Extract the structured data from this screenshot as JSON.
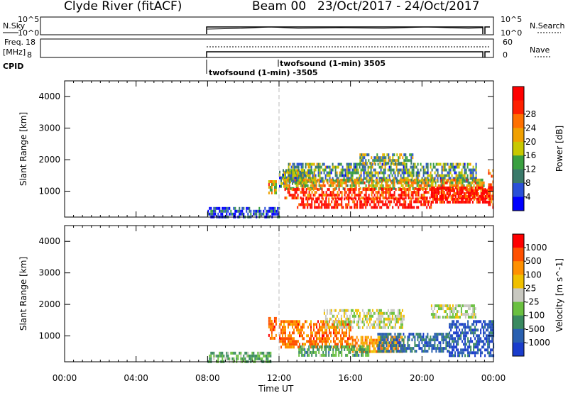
{
  "header": {
    "station": "Clyde River (fitACF)",
    "beam": "Beam 00",
    "dates": "23/Oct/2017 - 24/Oct/2017"
  },
  "params": {
    "nsky_label": "N.Sky",
    "nsky_ticks": [
      "10^5",
      "10^0"
    ],
    "nsky_right_ticks": [
      "10^5",
      "10^0"
    ],
    "nsearch_label": "N.Search",
    "freq_label": "Freq.",
    "freq_unit": "[MHz]",
    "freq_ticks": [
      "18",
      "8"
    ],
    "nave_ticks": [
      "60",
      "0"
    ],
    "nave_label": "Nave",
    "cpid_label": "CPID",
    "cpid_annotations": [
      {
        "text": "twofsound (1-min) 3505",
        "time_h": 12.05
      },
      {
        "text": "twofsound (1-min) -3505",
        "time_h": 8.1
      }
    ]
  },
  "x_axis": {
    "ticks": [
      "00:00",
      "04:00",
      "08:00",
      "12:00",
      "16:00",
      "20:00",
      "00:00"
    ],
    "tick_hours": [
      0,
      4,
      8,
      12,
      16,
      20,
      24
    ],
    "label": "Time UT"
  },
  "chart_data": [
    {
      "type": "heatmap",
      "name": "power",
      "ylabel": "Slant Range [km]",
      "y_ticks": [
        1000,
        2000,
        3000,
        4000
      ],
      "ylim": [
        180,
        4500
      ],
      "xlim_hours": [
        0,
        24
      ],
      "colorbar": {
        "label": "Power [dB]",
        "ticks": [
          "4",
          "8",
          "12",
          "16",
          "20",
          "24",
          "28"
        ],
        "colors": [
          "#0000ff",
          "#2a50d8",
          "#3a7a6a",
          "#3aa040",
          "#c8c800",
          "#f0a000",
          "#ff7000",
          "#ff2000",
          "#ff0000"
        ]
      },
      "marker_line_hours": 12,
      "regions": [
        {
          "t0": 11.4,
          "t1": 11.8,
          "r0": 900,
          "r1": 1350,
          "v": 0.55
        },
        {
          "t0": 12.0,
          "t1": 13.5,
          "r0": 1150,
          "r1": 1650,
          "v": 0.3
        },
        {
          "t0": 12.2,
          "t1": 14.0,
          "r0": 1300,
          "r1": 1700,
          "v": 0.45
        },
        {
          "t0": 12.5,
          "t1": 23.0,
          "r0": 1350,
          "r1": 1900,
          "v": 0.35
        },
        {
          "t0": 12.3,
          "t1": 23.5,
          "r0": 1050,
          "r1": 1400,
          "v": 0.55
        },
        {
          "t0": 12.3,
          "t1": 23.8,
          "r0": 750,
          "r1": 1100,
          "v": 0.85
        },
        {
          "t0": 13.0,
          "t1": 20.5,
          "r0": 450,
          "r1": 800,
          "v": 0.95
        },
        {
          "t0": 20.5,
          "t1": 23.8,
          "r0": 650,
          "r1": 1150,
          "v": 0.95
        },
        {
          "t0": 8.0,
          "t1": 12.0,
          "r0": 180,
          "r1": 500,
          "v": 0.15
        },
        {
          "t0": 16.5,
          "t1": 19.5,
          "r0": 1900,
          "r1": 2200,
          "v": 0.4
        },
        {
          "t0": 23.7,
          "t1": 24.0,
          "r0": 500,
          "r1": 1700,
          "v": 0.85
        }
      ]
    },
    {
      "type": "heatmap",
      "name": "velocity",
      "ylabel": "Slant Range [km]",
      "y_ticks": [
        1000,
        2000,
        3000,
        4000
      ],
      "ylim": [
        180,
        4500
      ],
      "xlim_hours": [
        0,
        24
      ],
      "colorbar": {
        "label": "Velocity [m s^-1]",
        "ticks": [
          "1000",
          "500",
          "100",
          "25",
          "-25",
          "-100",
          "-500",
          "-1000"
        ],
        "colors": [
          "#1a3dcc",
          "#2a60b0",
          "#3a8a60",
          "#6ac040",
          "#c8c8c0",
          "#f0c000",
          "#ff9000",
          "#ff5000",
          "#ff0000"
        ]
      },
      "marker_line_hours": 12,
      "regions": [
        {
          "t0": 11.4,
          "t1": 11.8,
          "r0": 900,
          "r1": 1600,
          "v": -0.6
        },
        {
          "t0": 12.0,
          "t1": 16.0,
          "r0": 600,
          "r1": 1500,
          "v": -0.55
        },
        {
          "t0": 14.5,
          "t1": 19.0,
          "r0": 1250,
          "r1": 1850,
          "v": 0.0
        },
        {
          "t0": 16.0,
          "t1": 19.0,
          "r0": 500,
          "r1": 1000,
          "v": -0.4
        },
        {
          "t0": 17.5,
          "t1": 21.5,
          "r0": 500,
          "r1": 1100,
          "v": 0.6
        },
        {
          "t0": 21.5,
          "t1": 24.0,
          "r0": 400,
          "r1": 1500,
          "v": 0.75
        },
        {
          "t0": 20.5,
          "t1": 23.0,
          "r0": 1600,
          "r1": 2000,
          "v": 0.05
        },
        {
          "t0": 8.0,
          "t1": 11.5,
          "r0": 180,
          "r1": 500,
          "v": 0.3
        },
        {
          "t0": 13.0,
          "t1": 17.0,
          "r0": 400,
          "r1": 700,
          "v": 0.35
        }
      ]
    }
  ]
}
